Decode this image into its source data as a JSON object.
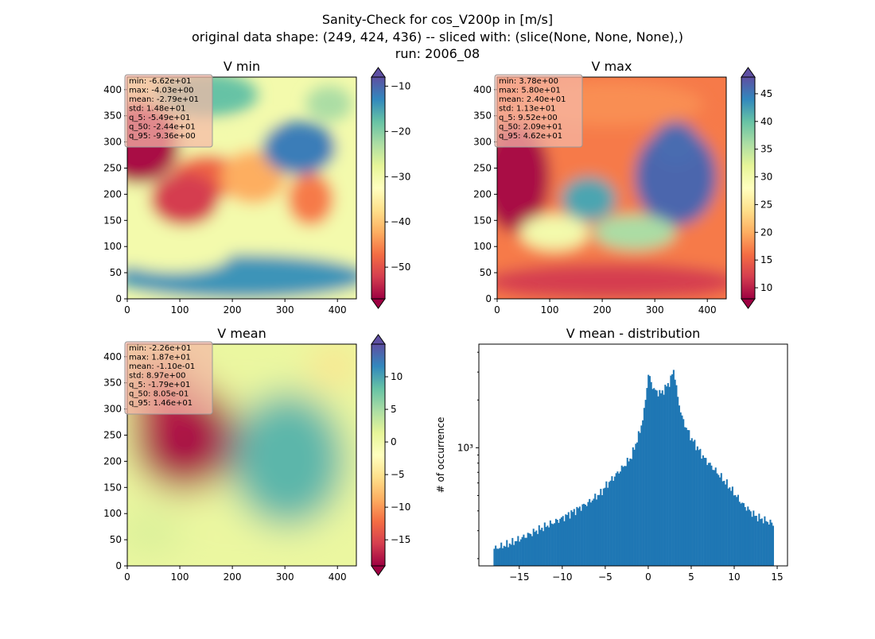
{
  "figure": {
    "suptitle_lines": [
      "Sanity-Check for cos_V200p in [m/s]",
      "original data shape: (249, 424, 436) -- sliced with: (slice(None, None, None),)",
      "run: 2006_08"
    ]
  },
  "chart_data": [
    {
      "type": "heatmap",
      "title": "V min",
      "colormap": "Spectral",
      "xlim": [
        0,
        436
      ],
      "ylim": [
        0,
        424
      ],
      "xticks": [
        "0",
        "100",
        "200",
        "300",
        "400"
      ],
      "yticks": [
        "0",
        "50",
        "100",
        "150",
        "200",
        "250",
        "300",
        "350",
        "400"
      ],
      "colorbar": {
        "range": [
          -57,
          -8
        ],
        "ticks": [
          "−10",
          "−20",
          "−30",
          "−40",
          "−50"
        ],
        "tick_values": [
          -10,
          -20,
          -30,
          -40,
          -50
        ],
        "extend": "both"
      },
      "stats": [
        "min: -6.62e+01",
        "max: -4.03e+00",
        "mean: -2.79e+01",
        "std: 1.48e+01",
        "q_5: -5.49e+01",
        "q_50: -2.44e+01",
        "q_95: -9.36e+00"
      ]
    },
    {
      "type": "heatmap",
      "title": "V max",
      "colormap": "Spectral",
      "xlim": [
        0,
        436
      ],
      "ylim": [
        0,
        424
      ],
      "xticks": [
        "0",
        "100",
        "200",
        "300",
        "400"
      ],
      "yticks": [
        "0",
        "50",
        "100",
        "150",
        "200",
        "250",
        "300",
        "350",
        "400"
      ],
      "colorbar": {
        "range": [
          8,
          48
        ],
        "ticks": [
          "45",
          "40",
          "35",
          "30",
          "25",
          "20",
          "15",
          "10"
        ],
        "tick_values": [
          45,
          40,
          35,
          30,
          25,
          20,
          15,
          10
        ],
        "extend": "both"
      },
      "stats": [
        "min: 3.78e+00",
        "max: 5.80e+01",
        "mean: 2.40e+01",
        "std: 1.13e+01",
        "q_5: 9.52e+00",
        "q_50: 2.09e+01",
        "q_95: 4.62e+01"
      ]
    },
    {
      "type": "heatmap",
      "title": "V mean",
      "colormap": "Spectral",
      "xlim": [
        0,
        436
      ],
      "ylim": [
        0,
        424
      ],
      "xticks": [
        "0",
        "100",
        "200",
        "300",
        "400"
      ],
      "yticks": [
        "0",
        "50",
        "100",
        "150",
        "200",
        "250",
        "300",
        "350",
        "400"
      ],
      "colorbar": {
        "range": [
          -19,
          15
        ],
        "ticks": [
          "10",
          "5",
          "0",
          "−5",
          "−10",
          "−15"
        ],
        "tick_values": [
          10,
          5,
          0,
          -5,
          -10,
          -15
        ],
        "extend": "both"
      },
      "stats": [
        "min: -2.26e+01",
        "max: 1.87e+01",
        "mean: -1.10e-01",
        "std: 8.97e+00",
        "q_5: -1.79e+01",
        "q_50: 8.05e-01",
        "q_95: 1.46e+01"
      ]
    },
    {
      "type": "bar",
      "title": "V mean - distribution",
      "ylabel": "# of occurrence",
      "xlabel": "",
      "y_scale": "log",
      "xlim": [
        -19.7,
        16.2
      ],
      "ylim": [
        180,
        4500
      ],
      "xticks": [
        "−15",
        "−10",
        "−5",
        "0",
        "5",
        "10",
        "15"
      ],
      "xtick_values": [
        -15,
        -10,
        -5,
        0,
        5,
        10,
        15
      ],
      "ytick_labels": [
        "10³"
      ],
      "ytick_values": [
        1000
      ],
      "bar_color": "#1f77b4",
      "bin_range": [
        -18.0,
        14.6
      ],
      "profile": {
        "x": [
          -18.0,
          -16.0,
          -13.0,
          -10.0,
          -7.0,
          -5.5,
          -5.0,
          -3.0,
          -2.0,
          -1.0,
          -0.5,
          0.0,
          0.7,
          1.5,
          2.5,
          3.0,
          3.4,
          4.0,
          5.0,
          6.5,
          8.0,
          9.5,
          11.0,
          12.5,
          14.6
        ],
        "counts": [
          230,
          250,
          300,
          360,
          450,
          520,
          570,
          750,
          870,
          1250,
          1650,
          2900,
          2300,
          2200,
          2600,
          3150,
          2100,
          1500,
          1150,
          860,
          700,
          560,
          440,
          370,
          330
        ]
      }
    }
  ],
  "colors": {
    "bar": "#1f77b4",
    "spectral_stops": [
      "#9e0142",
      "#d53e4f",
      "#f46d43",
      "#fdae61",
      "#fee08b",
      "#ffffbf",
      "#e6f598",
      "#abdda4",
      "#66c2a5",
      "#3288bd",
      "#5e4fa2"
    ]
  }
}
